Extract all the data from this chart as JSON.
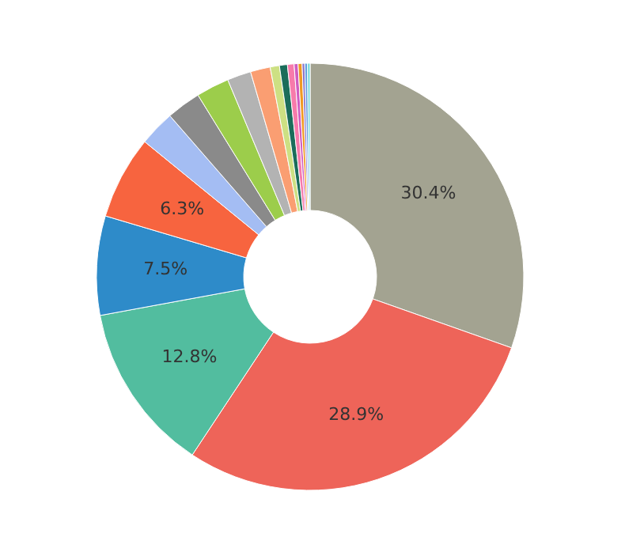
{
  "chart_data": {
    "type": "donut",
    "categories": [
      null,
      null,
      null,
      null,
      null,
      null,
      null,
      null,
      null,
      null,
      null,
      null,
      null,
      null,
      null,
      null,
      null,
      null
    ],
    "values": [
      30.4,
      28.9,
      12.8,
      7.5,
      6.3,
      2.7,
      2.6,
      2.5,
      1.8,
      1.5,
      0.7,
      0.6,
      0.5,
      0.3,
      0.3,
      0.2,
      0.2,
      0.2
    ],
    "colors": [
      "#a3a391",
      "#ee6459",
      "#52bd9f",
      "#2e8bc9",
      "#f7643f",
      "#a4bdf3",
      "#8a8a8a",
      "#9ccd4b",
      "#b3b3b3",
      "#fa9e72",
      "#cde083",
      "#1b6d5a",
      "#f77bab",
      "#d05cc0",
      "#f09a23",
      "#8b74c9",
      "#5f9fe0",
      "#7adbd8"
    ],
    "value_labels": [
      "30.4%",
      "28.9%",
      "12.8%",
      "7.5%",
      "6.3%",
      null,
      null,
      null,
      null,
      null,
      null,
      null,
      null,
      null,
      null,
      null,
      null,
      null
    ]
  }
}
